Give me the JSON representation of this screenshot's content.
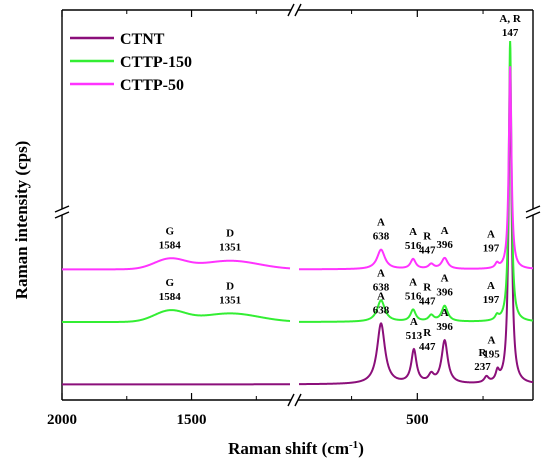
{
  "chart_data": {
    "type": "line",
    "xlabel": "Raman shift (cm",
    "xlabel_sup": "-1",
    "xlabel_close": ")",
    "ylabel": "Raman intensity (cps)",
    "x_ticks": [
      "2000",
      "1500",
      "500"
    ],
    "x_tick_values": [
      2000,
      1500,
      500
    ],
    "x_axis_breaks": [
      [
        1120,
        950
      ]
    ],
    "y_axis_break": true,
    "legend": {
      "position": "top-left"
    },
    "series": [
      {
        "name": "CTNT",
        "color": "#8b0f7a",
        "baseline": 0.04,
        "broad_bands": [],
        "peaks": [
          {
            "x": 147,
            "h": 0.78,
            "w": 7
          },
          {
            "x": 195,
            "h": 0.025,
            "w": 8
          },
          {
            "x": 237,
            "h": 0.015,
            "w": 10
          },
          {
            "x": 396,
            "h": 0.11,
            "w": 14
          },
          {
            "x": 447,
            "h": 0.02,
            "w": 12
          },
          {
            "x": 513,
            "h": 0.085,
            "w": 12
          },
          {
            "x": 638,
            "h": 0.155,
            "w": 18
          }
        ]
      },
      {
        "name": "CTTP-150",
        "color": "#33ee33",
        "baseline": 0.2,
        "broad_bands": [
          {
            "x": 1584,
            "h": 0.028,
            "w": 60
          },
          {
            "x": 1351,
            "h": 0.022,
            "w": 110
          }
        ],
        "peaks": [
          {
            "x": 147,
            "h": 0.72,
            "w": 6
          },
          {
            "x": 197,
            "h": 0.012,
            "w": 8
          },
          {
            "x": 396,
            "h": 0.04,
            "w": 14
          },
          {
            "x": 447,
            "h": 0.015,
            "w": 12
          },
          {
            "x": 516,
            "h": 0.03,
            "w": 12
          },
          {
            "x": 638,
            "h": 0.055,
            "w": 18
          }
        ]
      },
      {
        "name": "CTTP-50",
        "color": "#ff33ff",
        "baseline": 0.335,
        "broad_bands": [
          {
            "x": 1584,
            "h": 0.026,
            "w": 60
          },
          {
            "x": 1351,
            "h": 0.022,
            "w": 110
          }
        ],
        "peaks": [
          {
            "x": 147,
            "h": 0.52,
            "w": 6
          },
          {
            "x": 197,
            "h": 0.012,
            "w": 8
          },
          {
            "x": 396,
            "h": 0.028,
            "w": 14
          },
          {
            "x": 447,
            "h": 0.012,
            "w": 12
          },
          {
            "x": 516,
            "h": 0.025,
            "w": 12
          },
          {
            "x": 638,
            "h": 0.05,
            "w": 18
          }
        ]
      }
    ],
    "annotations": [
      {
        "series": 2,
        "x": 1584,
        "top": "G",
        "bottom": "1584"
      },
      {
        "series": 2,
        "x": 1351,
        "top": "D",
        "bottom": "1351"
      },
      {
        "series": 2,
        "x": 638,
        "top": "A",
        "bottom": "638"
      },
      {
        "series": 2,
        "x": 516,
        "top": "A",
        "bottom": "516"
      },
      {
        "series": 2,
        "x": 447,
        "top": "R",
        "bottom": "447"
      },
      {
        "series": 2,
        "x": 396,
        "top": "A",
        "bottom": "396"
      },
      {
        "series": 2,
        "x": 197,
        "top": "A",
        "bottom": "197"
      },
      {
        "series": 1,
        "x": 1584,
        "top": "G",
        "bottom": "1584"
      },
      {
        "series": 1,
        "x": 1351,
        "top": "D",
        "bottom": "1351"
      },
      {
        "series": 1,
        "x": 638,
        "top": "A",
        "bottom": "638"
      },
      {
        "series": 1,
        "x": 516,
        "top": "A",
        "bottom": "516"
      },
      {
        "series": 1,
        "x": 447,
        "top": "R",
        "bottom": "447"
      },
      {
        "series": 1,
        "x": 396,
        "top": "A",
        "bottom": "396"
      },
      {
        "series": 1,
        "x": 197,
        "top": "A",
        "bottom": "197"
      },
      {
        "series": 0,
        "x": 638,
        "top": "A",
        "bottom": "638"
      },
      {
        "series": 0,
        "x": 513,
        "top": "A",
        "bottom": "513"
      },
      {
        "series": 0,
        "x": 447,
        "top": "R",
        "bottom": "447"
      },
      {
        "series": 0,
        "x": 396,
        "top": "A",
        "bottom": "396"
      },
      {
        "series": 0,
        "x": 237,
        "top": "R",
        "bottom": "237"
      },
      {
        "series": 0,
        "x": 195,
        "top": "A",
        "bottom": "195"
      },
      {
        "series": 0,
        "x": 147,
        "top": "A, R",
        "bottom": "147"
      }
    ]
  }
}
